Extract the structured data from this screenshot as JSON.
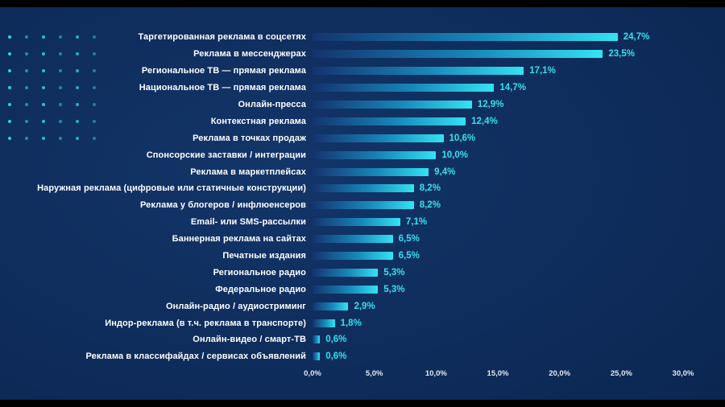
{
  "page": {
    "background": "#0d2a58",
    "accent_cyan": "#38e0ee"
  },
  "decor": {
    "dot_grid": {
      "columns": 6,
      "rows": 7,
      "dot_color": "#37dff0"
    }
  },
  "chart_data": {
    "type": "bar",
    "orientation": "horizontal",
    "title": "",
    "xlabel": "",
    "ylabel": "",
    "xlim": [
      0,
      30
    ],
    "grid": false,
    "legend": "none",
    "bar_gradient": [
      "#15336e",
      "#1787b9",
      "#33e3f2"
    ],
    "value_label_color": "#38e0ee",
    "category_label_color": "#ffffff",
    "categories": [
      "Таргетированная реклама в соцсетях",
      "Реклама в мессенджерах",
      "Региональное ТВ — прямая реклама",
      "Национальное ТВ — прямая реклама",
      "Онлайн-пресса",
      "Контекстная реклама",
      "Реклама в точках продаж",
      "Спонсорские заставки / интеграции",
      "Реклама в маркетплейсах",
      "Наружная реклама (цифровые или статичные конструкции)",
      "Реклама у блогеров / инфлюенсеров",
      "Email- или SMS-рассылки",
      "Баннерная реклама на сайтах",
      "Печатные издания",
      "Региональное радио",
      "Федеральное радио",
      "Онлайн-радио / аудиостриминг",
      "Индор-реклама (в т.ч. реклама в транспорте)",
      "Онлайн-видео / смарт-ТВ",
      "Реклама в классифайдах / сервисах объявлений"
    ],
    "values": [
      24.7,
      23.5,
      17.1,
      14.7,
      12.9,
      12.4,
      10.6,
      10.0,
      9.4,
      8.2,
      8.2,
      7.1,
      6.5,
      6.5,
      5.3,
      5.3,
      2.9,
      1.8,
      0.6,
      0.6
    ],
    "value_labels": [
      "24,7%",
      "23,5%",
      "17,1%",
      "14,7%",
      "12,9%",
      "12,4%",
      "10,6%",
      "10,0%",
      "9,4%",
      "8,2%",
      "8,2%",
      "7,1%",
      "6,5%",
      "6,5%",
      "5,3%",
      "5,3%",
      "2,9%",
      "1,8%",
      "0,6%",
      "0,6%"
    ],
    "x_tick_values": [
      0,
      5,
      10,
      15,
      20,
      25,
      30
    ],
    "x_tick_labels": [
      "0,0%",
      "5,0%",
      "10,0%",
      "15,0%",
      "20,0%",
      "25,0%",
      "30,0%"
    ]
  }
}
